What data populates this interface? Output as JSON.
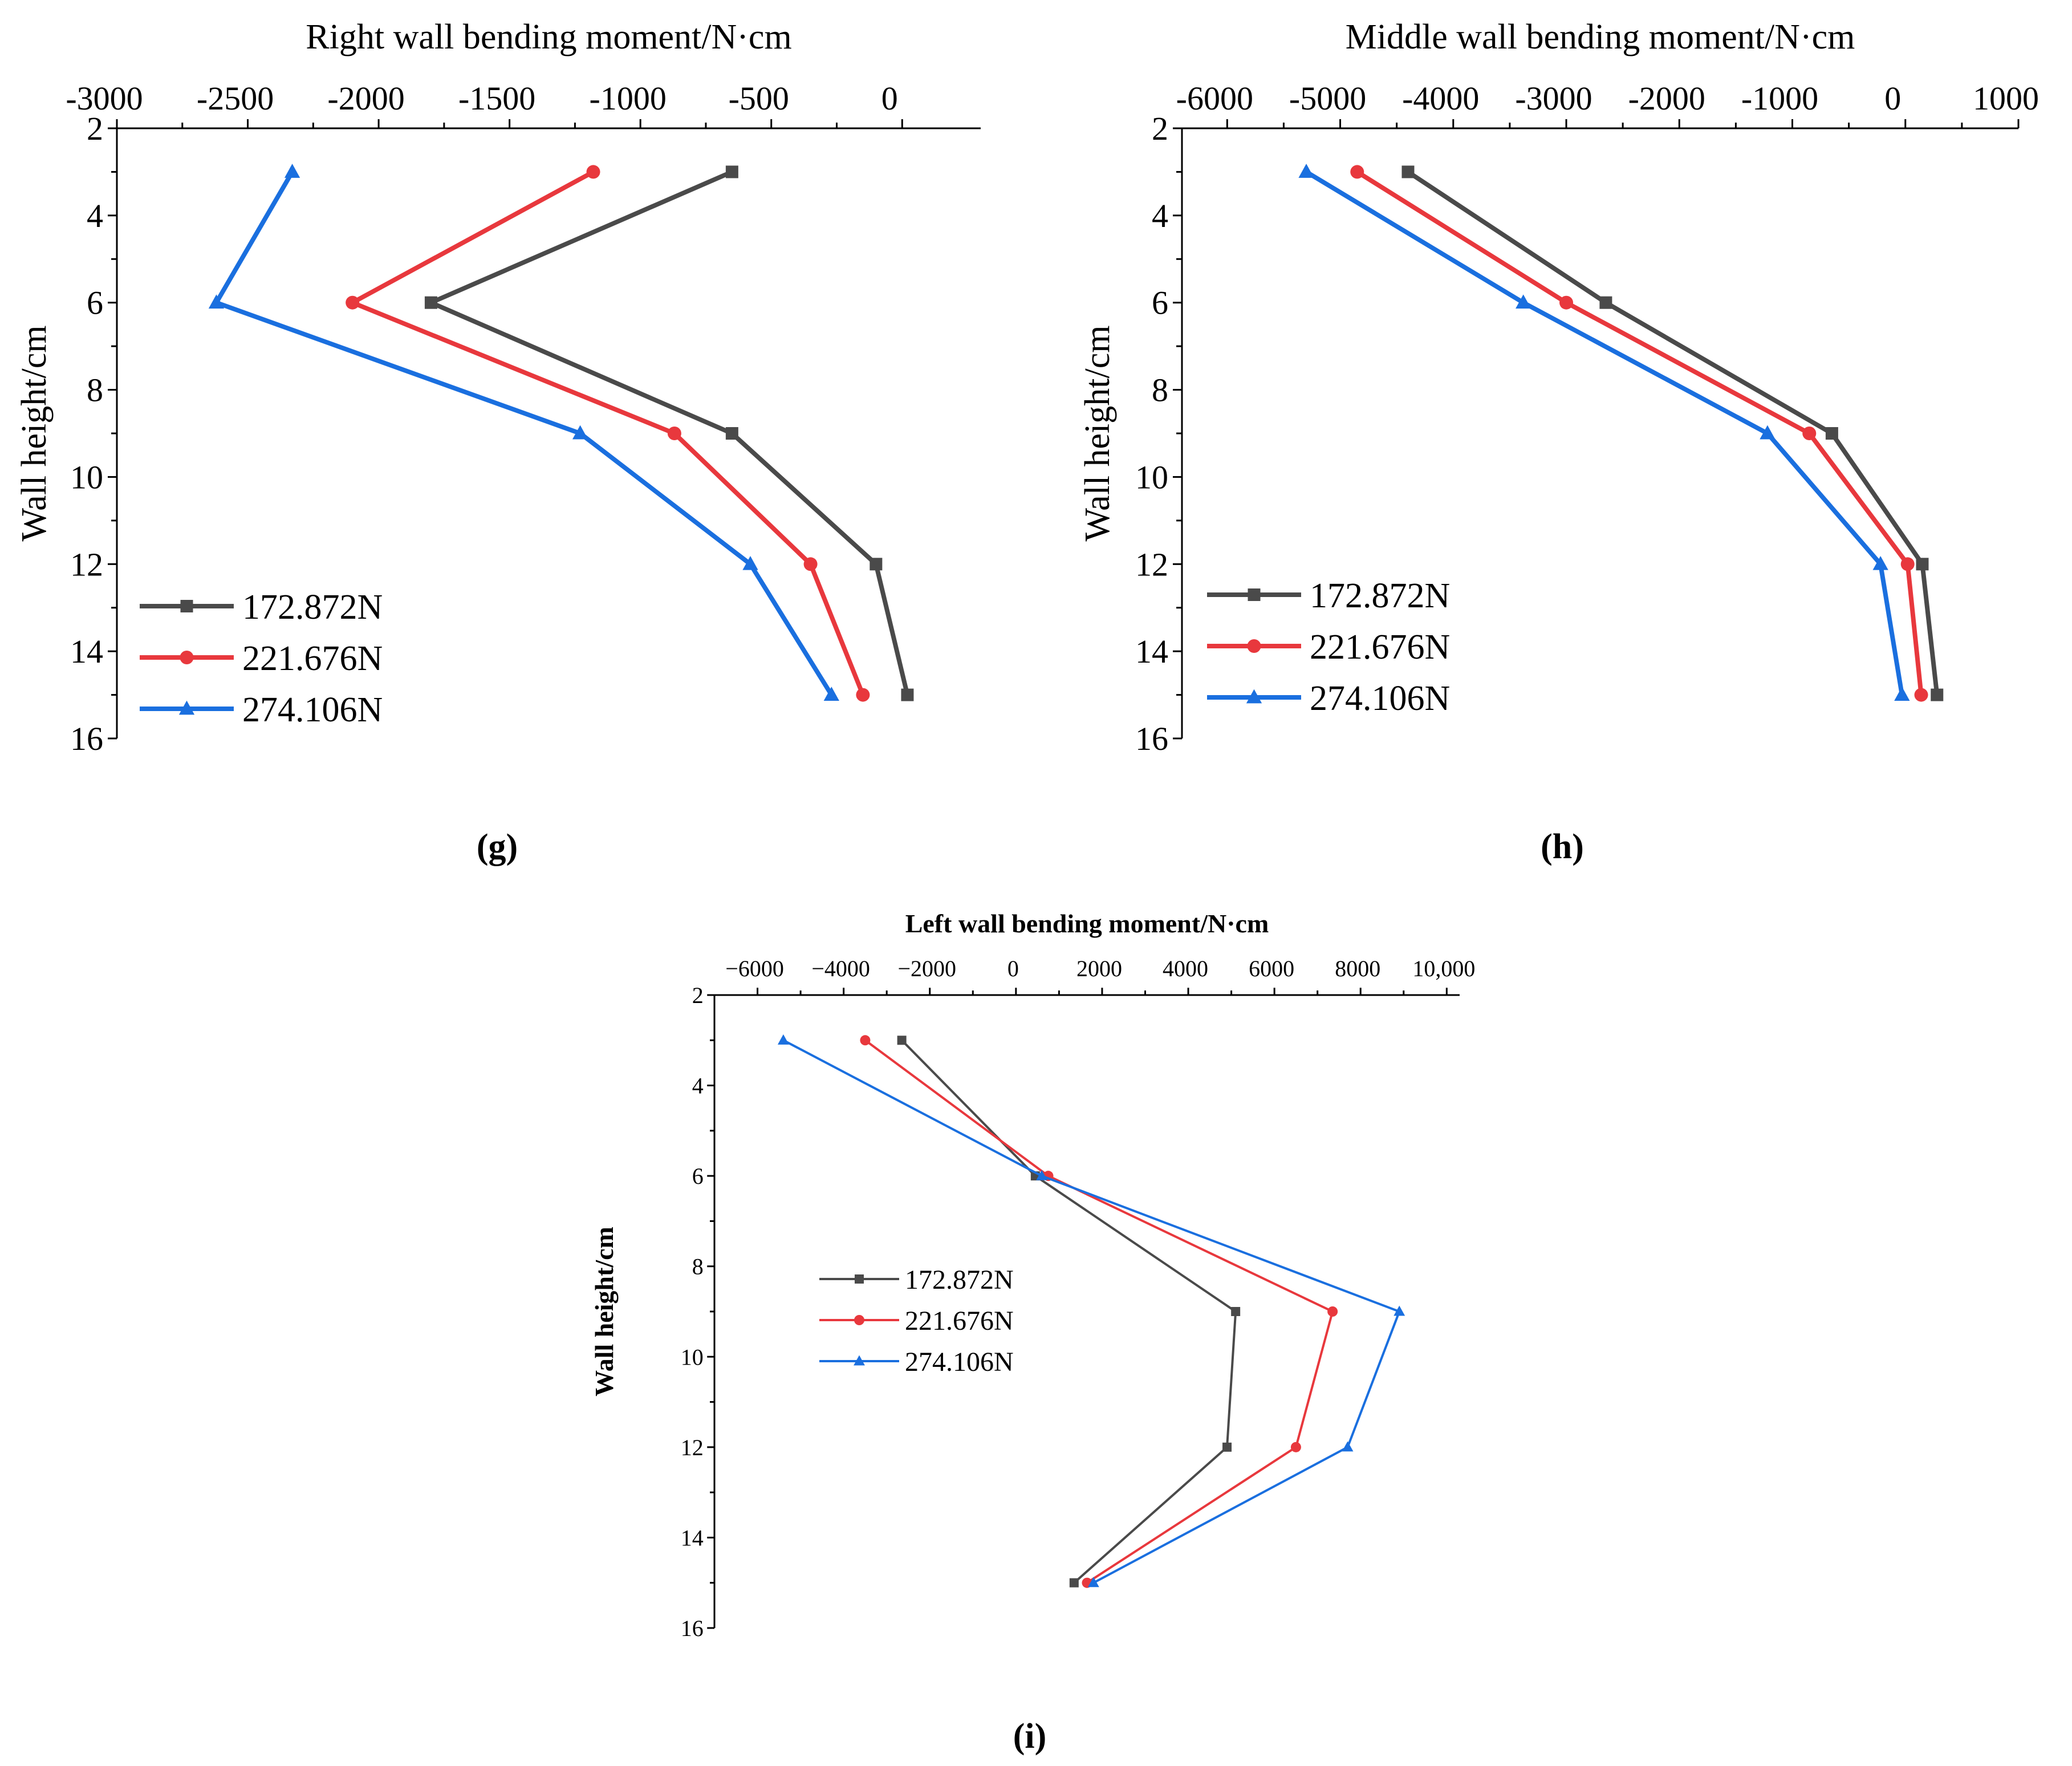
{
  "panel_labels": {
    "g": "g",
    "h": "h",
    "i": "i"
  },
  "chart_data": [
    {
      "id": "g",
      "type": "line",
      "title": "Right wall bending moment/N·cm",
      "xlabel": "Right wall bending moment/N·cm",
      "ylabel": "Wall height/cm",
      "x_axis_position": "top",
      "y_inverted": true,
      "xlim": [
        -3000,
        300
      ],
      "ylim": [
        2,
        16
      ],
      "xticks": [
        -3000,
        -2500,
        -2000,
        -1500,
        -1000,
        -500,
        0
      ],
      "xtick_labels": [
        "-3000",
        "-2500",
        "-2000",
        "-1500",
        "-1000",
        "-500",
        "0"
      ],
      "yticks": [
        2,
        4,
        6,
        8,
        10,
        12,
        14,
        16
      ],
      "ytick_labels": [
        "2",
        "4",
        "6",
        "8",
        "10",
        "12",
        "14",
        "16"
      ],
      "legend_position": "bottom-left",
      "series": [
        {
          "name": "172.872N",
          "color": "#4a4a4a",
          "marker": "square",
          "points": [
            {
              "x": -650,
              "y": 3
            },
            {
              "x": -1800,
              "y": 6
            },
            {
              "x": -650,
              "y": 9
            },
            {
              "x": -100,
              "y": 12
            },
            {
              "x": 20,
              "y": 15
            }
          ]
        },
        {
          "name": "221.676N",
          "color": "#e8383d",
          "marker": "circle",
          "points": [
            {
              "x": -1180,
              "y": 3
            },
            {
              "x": -2100,
              "y": 6
            },
            {
              "x": -870,
              "y": 9
            },
            {
              "x": -350,
              "y": 12
            },
            {
              "x": -150,
              "y": 15
            }
          ]
        },
        {
          "name": "274.106N",
          "color": "#1a6fdf",
          "marker": "triangle",
          "points": [
            {
              "x": -2330,
              "y": 3
            },
            {
              "x": -2620,
              "y": 6
            },
            {
              "x": -1230,
              "y": 9
            },
            {
              "x": -580,
              "y": 12
            },
            {
              "x": -270,
              "y": 15
            }
          ]
        }
      ]
    },
    {
      "id": "h",
      "type": "line",
      "title": "Middle wall bending moment/N·cm",
      "xlabel": "Middle wall bending moment/N·cm",
      "ylabel": "Wall height/cm",
      "x_axis_position": "top",
      "y_inverted": true,
      "xlim": [
        -6400,
        1000
      ],
      "ylim": [
        2,
        16
      ],
      "xticks": [
        -6000,
        -5000,
        -4000,
        -3000,
        -2000,
        -1000,
        0,
        1000
      ],
      "xtick_labels": [
        "-6000",
        "-5000",
        "-4000",
        "-3000",
        "-2000",
        "-1000",
        "0",
        "1000"
      ],
      "yticks": [
        2,
        4,
        6,
        8,
        10,
        12,
        14,
        16
      ],
      "ytick_labels": [
        "2",
        "4",
        "6",
        "8",
        "10",
        "12",
        "14",
        "16"
      ],
      "legend_position": "bottom-left",
      "series": [
        {
          "name": "172.872N",
          "color": "#4a4a4a",
          "marker": "square",
          "points": [
            {
              "x": -4400,
              "y": 3
            },
            {
              "x": -2650,
              "y": 6
            },
            {
              "x": -650,
              "y": 9
            },
            {
              "x": 150,
              "y": 12
            },
            {
              "x": 280,
              "y": 15
            }
          ]
        },
        {
          "name": "221.676N",
          "color": "#e8383d",
          "marker": "circle",
          "points": [
            {
              "x": -4850,
              "y": 3
            },
            {
              "x": -3000,
              "y": 6
            },
            {
              "x": -850,
              "y": 9
            },
            {
              "x": 20,
              "y": 12
            },
            {
              "x": 140,
              "y": 15
            }
          ]
        },
        {
          "name": "274.106N",
          "color": "#1a6fdf",
          "marker": "triangle",
          "points": [
            {
              "x": -5300,
              "y": 3
            },
            {
              "x": -3380,
              "y": 6
            },
            {
              "x": -1220,
              "y": 9
            },
            {
              "x": -220,
              "y": 12
            },
            {
              "x": -30,
              "y": 15
            }
          ]
        }
      ]
    },
    {
      "id": "i",
      "type": "line",
      "title": "Left wall bending moment/N·cm",
      "xlabel": "Left wall bending moment/N·cm",
      "ylabel": "Wall height/cm",
      "x_axis_position": "top",
      "y_inverted": true,
      "xlim": [
        -7000,
        10300
      ],
      "ylim": [
        2,
        16
      ],
      "xticks": [
        -6000,
        -4000,
        -2000,
        0,
        2000,
        4000,
        6000,
        8000,
        10000
      ],
      "xtick_labels": [
        "−6000",
        "−4000",
        "−2000",
        "0",
        "2000",
        "4000",
        "6000",
        "8000",
        "10,000"
      ],
      "yticks": [
        2,
        4,
        6,
        8,
        10,
        12,
        14,
        16
      ],
      "ytick_labels": [
        "2",
        "4",
        "6",
        "8",
        "10",
        "12",
        "14",
        "16"
      ],
      "legend_position": "center-left",
      "series": [
        {
          "name": "172.872N",
          "color": "#4a4a4a",
          "marker": "square",
          "points": [
            {
              "x": -2650,
              "y": 3
            },
            {
              "x": 450,
              "y": 6
            },
            {
              "x": 5100,
              "y": 9
            },
            {
              "x": 4900,
              "y": 12
            },
            {
              "x": 1350,
              "y": 15
            }
          ]
        },
        {
          "name": "221.676N",
          "color": "#e8383d",
          "marker": "circle",
          "points": [
            {
              "x": -3500,
              "y": 3
            },
            {
              "x": 750,
              "y": 6
            },
            {
              "x": 7350,
              "y": 9
            },
            {
              "x": 6500,
              "y": 12
            },
            {
              "x": 1650,
              "y": 15
            }
          ]
        },
        {
          "name": "274.106N",
          "color": "#1a6fdf",
          "marker": "triangle",
          "points": [
            {
              "x": -5400,
              "y": 3
            },
            {
              "x": 600,
              "y": 6
            },
            {
              "x": 8900,
              "y": 9
            },
            {
              "x": 7700,
              "y": 12
            },
            {
              "x": 1800,
              "y": 15
            }
          ]
        }
      ]
    }
  ]
}
